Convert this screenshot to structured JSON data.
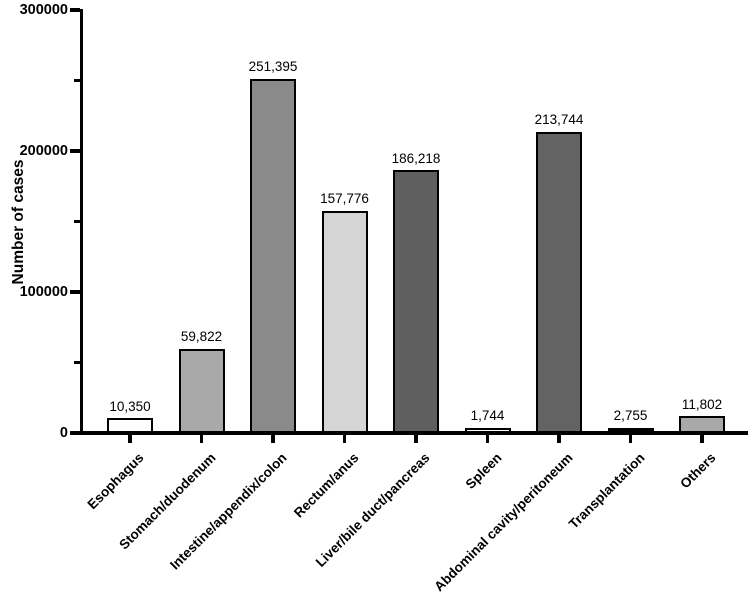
{
  "figure": {
    "background": "#ffffff",
    "axis_color": "#000000",
    "text_color": "#000000"
  },
  "chart_data": {
    "type": "bar",
    "title": "",
    "xlabel": "",
    "ylabel": "Number of cases",
    "ylim": [
      0,
      300000
    ],
    "grid": "off",
    "legend": "none",
    "yticks_major": [
      {
        "value": 0,
        "label": "0"
      },
      {
        "value": 100000,
        "label": "100000"
      },
      {
        "value": 200000,
        "label": "200000"
      },
      {
        "value": 300000,
        "label": "300000"
      }
    ],
    "yticks_minor": [
      50000,
      150000,
      250000
    ],
    "categories": [
      "Esophagus",
      "Stomach/duodenum",
      "Intestine/appendix/colon",
      "Rectum/anus",
      "Liver/bile duct/pancreas",
      "Spleen",
      "Abdominal cavity/peritoneum",
      "Transplantation",
      "Others"
    ],
    "values": [
      10350,
      59822,
      251395,
      157776,
      186218,
      1744,
      213744,
      2755,
      11802
    ],
    "value_labels": [
      "10,350",
      "59,822",
      "251,395",
      "157,776",
      "186,218",
      "1,744",
      "213,744",
      "2,755",
      "11,802"
    ],
    "bar_fill_colors": [
      "#ffffff",
      "#a9a9a9",
      "#8a8a8a",
      "#d5d5d5",
      "#5f5f5f",
      "#ffffff",
      "#636363",
      "#000000",
      "#a9a9a9"
    ],
    "bar_border_color": "#000000"
  }
}
